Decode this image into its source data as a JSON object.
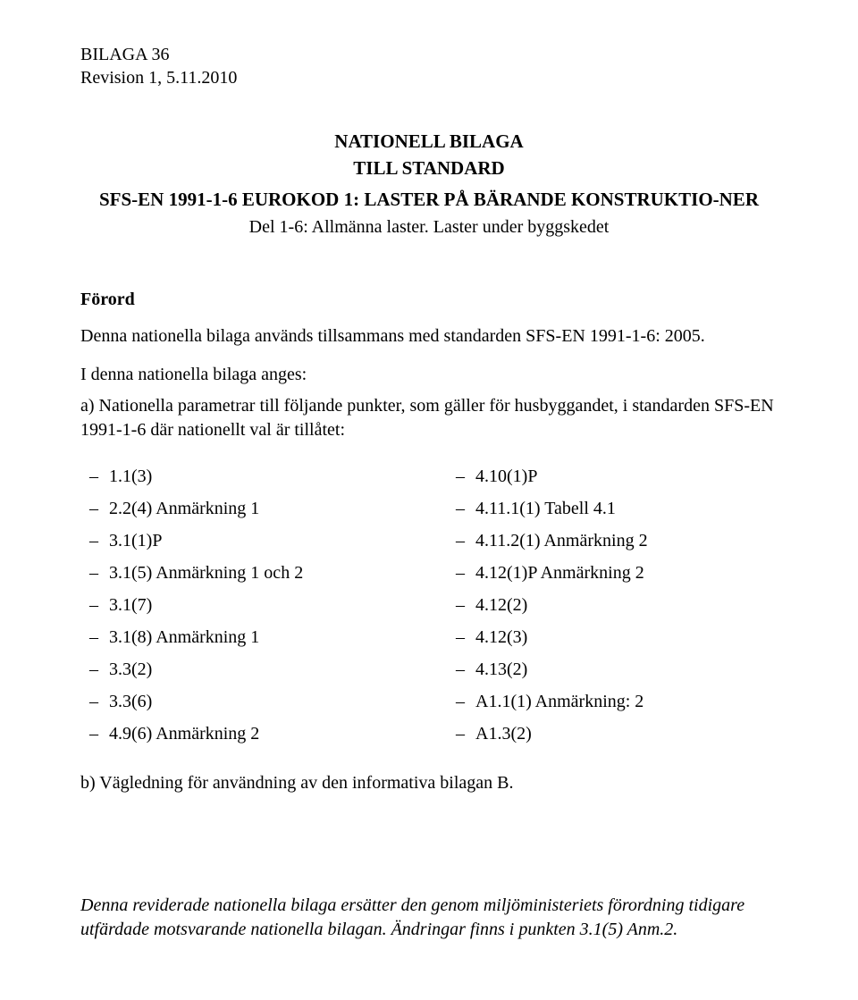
{
  "header": {
    "line1": "BILAGA 36",
    "line2": "Revision 1, 5.11.2010"
  },
  "title": {
    "main": "NATIONELL BILAGA",
    "sub": "TILL STANDARD",
    "standard": "SFS-EN 1991-1-6 EUROKOD 1: LASTER PÅ BÄRANDE KONSTRUKTIO-NER",
    "part": "Del 1-6: Allmänna laster. Laster under byggskedet"
  },
  "foreword": {
    "heading": "Förord",
    "p1": "Denna nationella bilaga används tillsammans med standarden SFS-EN 1991-1-6: 2005.",
    "p2": "I denna nationella bilaga anges:",
    "p3": "a) Nationella parametrar till följande punkter, som gäller för husbyggandet, i standarden SFS-EN 1991-1-6 där nationellt val är tillåtet:",
    "left": [
      "1.1(3)",
      "2.2(4) Anmärkning 1",
      "3.1(1)P",
      "3.1(5) Anmärkning 1 och 2",
      "3.1(7)",
      "3.1(8) Anmärkning 1",
      "3.3(2)",
      "3.3(6)",
      "4.9(6) Anmärkning 2"
    ],
    "right": [
      "4.10(1)P",
      "4.11.1(1) Tabell 4.1",
      "4.11.2(1) Anmärkning 2",
      "4.12(1)P Anmärkning 2",
      "4.12(2)",
      "4.12(3)",
      "4.13(2)",
      "A1.1(1) Anmärkning: 2",
      "A1.3(2)"
    ],
    "p4": "b) Vägledning för användning av den informativa bilagan B."
  },
  "footnote": "Denna reviderade nationella bilaga ersätter den genom miljöministeriets förordning tidigare utfärdade motsvarande nationella bilagan. Ändringar finns i punkten 3.1(5) Anm.2."
}
